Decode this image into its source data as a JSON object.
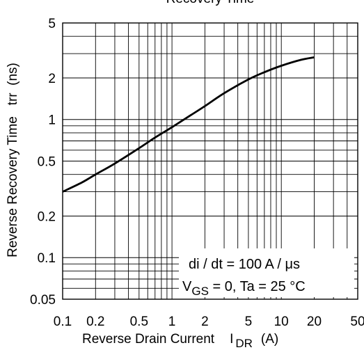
{
  "chart_data": {
    "type": "line",
    "title": "Recovery Time",
    "xlabel": "Reverse Drain Current",
    "xlabel_symbol": "I",
    "xlabel_subscript": "DR",
    "xlabel_unit": "(A)",
    "ylabel": "Reverse Recovery Time   trr  (ns)",
    "x_scale": "log",
    "y_scale": "log",
    "xlim": [
      0.1,
      50
    ],
    "ylim": [
      0.05,
      5
    ],
    "x_ticks": [
      "0.1",
      "0.2",
      "0.5",
      "1",
      "2",
      "5",
      "10",
      "20",
      "50"
    ],
    "y_ticks": [
      "0.05",
      "0.1",
      "0.2",
      "0.5",
      "1",
      "2",
      "5"
    ],
    "grid": true,
    "annotations": {
      "line1": "di / dt = 100 A / μs",
      "line2_prefix": "V",
      "line2_sub": "GS",
      "line2_rest": " = 0, Ta = 25 °C"
    },
    "series": [
      {
        "x": [
          0.1,
          0.15,
          0.2,
          0.3,
          0.5,
          0.7,
          1,
          1.5,
          2,
          3,
          5,
          7,
          10,
          15,
          20
        ],
        "y": [
          0.3,
          0.35,
          0.4,
          0.48,
          0.62,
          0.74,
          0.88,
          1.08,
          1.25,
          1.55,
          1.95,
          2.2,
          2.45,
          2.7,
          2.82
        ]
      }
    ]
  }
}
